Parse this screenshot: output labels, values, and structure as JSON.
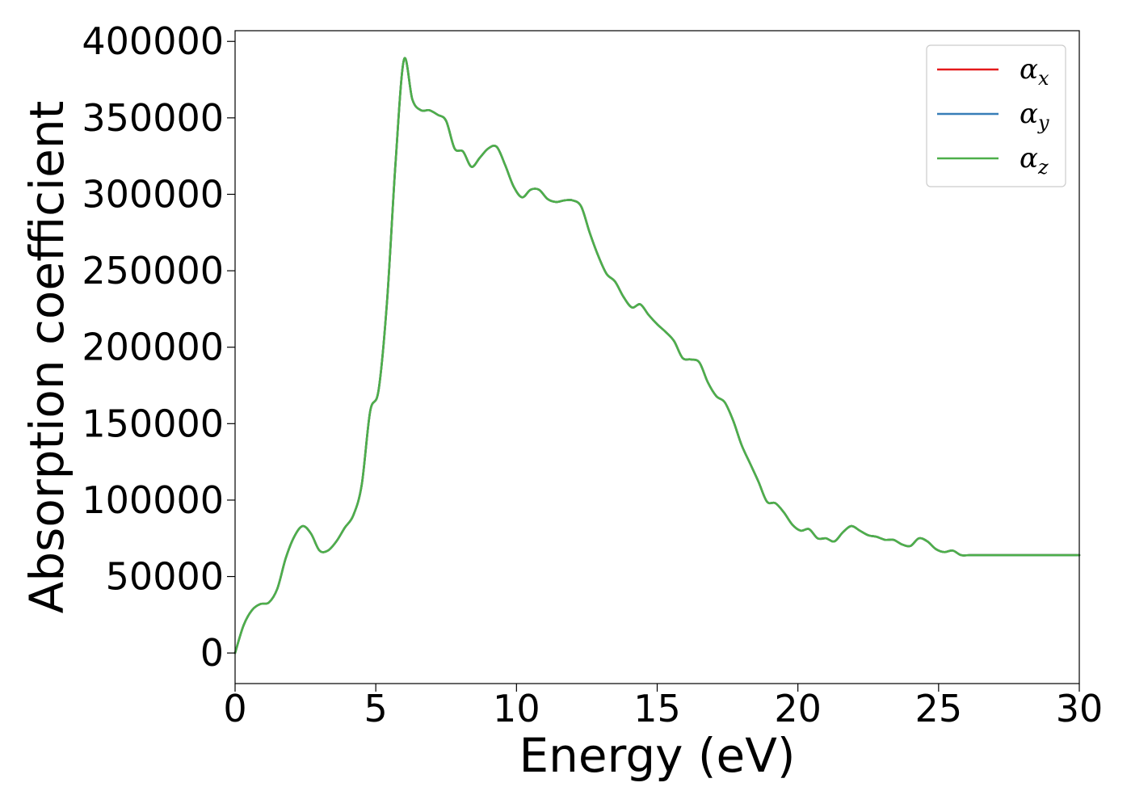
{
  "chart_data": {
    "type": "line",
    "title": "",
    "xlabel": "Energy (eV)",
    "ylabel": "Absorption coefficient",
    "xlim": [
      0,
      30
    ],
    "ylim": [
      -20000,
      407000
    ],
    "xticks": [
      0,
      5,
      10,
      15,
      20,
      25,
      30
    ],
    "xtick_labels": [
      "0",
      "5",
      "10",
      "15",
      "20",
      "25",
      "30"
    ],
    "yticks": [
      0,
      50000,
      100000,
      150000,
      200000,
      250000,
      300000,
      350000,
      400000
    ],
    "ytick_labels": [
      "0",
      "50000",
      "100000",
      "150000",
      "200000",
      "250000",
      "300000",
      "350000",
      "400000"
    ],
    "grid": false,
    "legend_position": "top-right",
    "x": [
      0,
      0.3,
      0.6,
      0.9,
      1.2,
      1.5,
      1.8,
      2.1,
      2.4,
      2.7,
      3.0,
      3.3,
      3.6,
      3.9,
      4.2,
      4.5,
      4.8,
      5.1,
      5.4,
      5.7,
      6.0,
      6.3,
      6.6,
      6.9,
      7.2,
      7.5,
      7.8,
      8.1,
      8.4,
      8.7,
      9.0,
      9.3,
      9.6,
      9.9,
      10.2,
      10.5,
      10.8,
      11.1,
      11.4,
      11.7,
      12.0,
      12.3,
      12.6,
      12.9,
      13.2,
      13.5,
      13.8,
      14.1,
      14.4,
      14.7,
      15.0,
      15.3,
      15.6,
      15.9,
      16.2,
      16.5,
      16.8,
      17.1,
      17.4,
      17.7,
      18.0,
      18.3,
      18.6,
      18.9,
      19.2,
      19.5,
      19.8,
      20.1,
      20.4,
      20.7,
      21.0,
      21.3,
      21.6,
      21.9,
      22.2,
      22.5,
      22.8,
      23.1,
      23.4,
      23.7,
      24.0,
      24.3,
      24.6,
      24.9,
      25.2,
      25.5,
      25.8,
      26.1,
      26.4,
      26.7,
      27.0,
      27.3,
      27.6,
      27.9,
      28.2,
      28.5,
      28.8,
      29.1,
      29.4,
      29.7,
      30.0
    ],
    "series": [
      {
        "name": "α_x",
        "color": "#e41a1c",
        "values": [
          0,
          18000,
          28000,
          32000,
          33000,
          42000,
          62000,
          76000,
          83000,
          78000,
          67000,
          67000,
          73000,
          82000,
          90000,
          110000,
          158000,
          172000,
          230000,
          320000,
          388000,
          362000,
          355000,
          355000,
          352000,
          348000,
          330000,
          328000,
          318000,
          324000,
          330000,
          331000,
          319000,
          305000,
          298000,
          303000,
          303000,
          297000,
          295000,
          296000,
          296000,
          292000,
          275000,
          260000,
          248000,
          243000,
          233000,
          226000,
          228000,
          221000,
          215000,
          210000,
          204000,
          193000,
          192000,
          190000,
          177000,
          168000,
          164000,
          152000,
          136000,
          124000,
          112000,
          99000,
          98000,
          92000,
          84000,
          80000,
          81000,
          75000,
          75000,
          73000,
          79000,
          83000,
          80000,
          77000,
          76000,
          74000,
          74000,
          71000,
          70000,
          75000,
          73000,
          68000,
          66000,
          67000,
          64000,
          64000,
          64000,
          64000,
          64000,
          64000,
          64000,
          64000,
          64000,
          64000,
          64000,
          64000,
          64000,
          64000,
          64000
        ]
      },
      {
        "name": "α_y",
        "color": "#377eb8",
        "values": [
          0,
          18000,
          28000,
          32000,
          33000,
          42000,
          62000,
          76000,
          83000,
          78000,
          67000,
          67000,
          73000,
          82000,
          90000,
          110000,
          158000,
          172000,
          230000,
          320000,
          388000,
          362000,
          355000,
          355000,
          352000,
          348000,
          330000,
          328000,
          318000,
          324000,
          330000,
          331000,
          319000,
          305000,
          298000,
          303000,
          303000,
          297000,
          295000,
          296000,
          296000,
          292000,
          275000,
          260000,
          248000,
          243000,
          233000,
          226000,
          228000,
          221000,
          215000,
          210000,
          204000,
          193000,
          192000,
          190000,
          177000,
          168000,
          164000,
          152000,
          136000,
          124000,
          112000,
          99000,
          98000,
          92000,
          84000,
          80000,
          81000,
          75000,
          75000,
          73000,
          79000,
          83000,
          80000,
          77000,
          76000,
          74000,
          74000,
          71000,
          70000,
          75000,
          73000,
          68000,
          66000,
          67000,
          64000,
          64000,
          64000,
          64000,
          64000,
          64000,
          64000,
          64000,
          64000,
          64000,
          64000,
          64000,
          64000,
          64000,
          64000
        ]
      },
      {
        "name": "α_z",
        "color": "#4daf4a",
        "values": [
          0,
          18000,
          28000,
          32000,
          33000,
          42000,
          62000,
          76000,
          83000,
          78000,
          67000,
          67000,
          73000,
          82000,
          90000,
          110000,
          158000,
          172000,
          230000,
          320000,
          388000,
          362000,
          355000,
          355000,
          352000,
          348000,
          330000,
          328000,
          318000,
          324000,
          330000,
          331000,
          319000,
          305000,
          298000,
          303000,
          303000,
          297000,
          295000,
          296000,
          296000,
          292000,
          275000,
          260000,
          248000,
          243000,
          233000,
          226000,
          228000,
          221000,
          215000,
          210000,
          204000,
          193000,
          192000,
          190000,
          177000,
          168000,
          164000,
          152000,
          136000,
          124000,
          112000,
          99000,
          98000,
          92000,
          84000,
          80000,
          81000,
          75000,
          75000,
          73000,
          79000,
          83000,
          80000,
          77000,
          76000,
          74000,
          74000,
          71000,
          70000,
          75000,
          73000,
          68000,
          66000,
          67000,
          64000,
          64000,
          64000,
          64000,
          64000,
          64000,
          64000,
          64000,
          64000,
          64000,
          64000,
          64000,
          64000,
          64000,
          64000
        ]
      }
    ],
    "legend": [
      {
        "symbol": "α",
        "sub": "x",
        "color": "#e41a1c"
      },
      {
        "symbol": "α",
        "sub": "y",
        "color": "#377eb8"
      },
      {
        "symbol": "α",
        "sub": "z",
        "color": "#4daf4a"
      }
    ]
  }
}
